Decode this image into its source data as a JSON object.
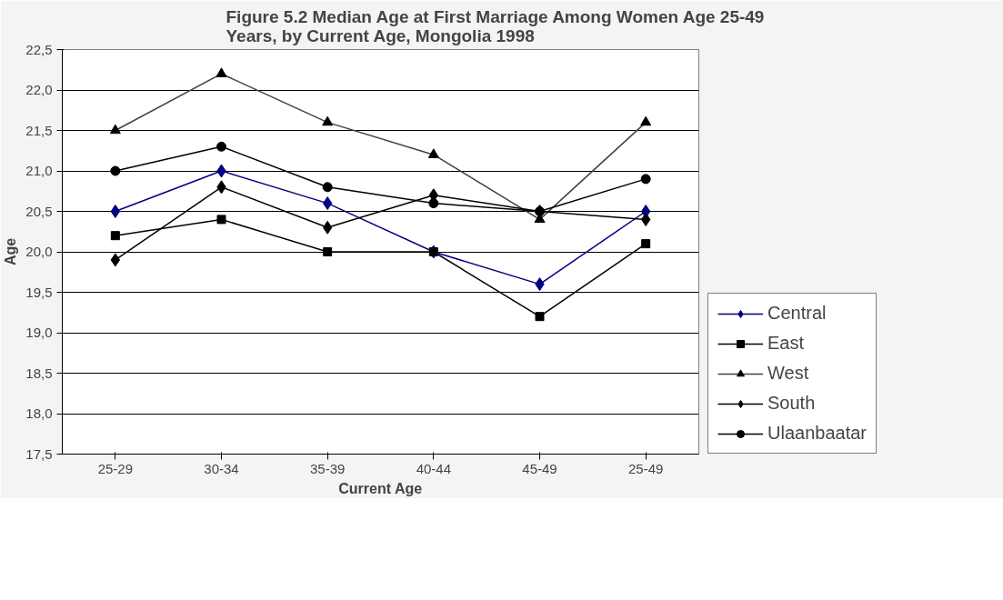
{
  "chart_data": {
    "type": "line",
    "title": "Figure 5.2 Median Age at First Marriage Among Women Age 25-49 Years, by Current Age, Mongolia 1998",
    "xlabel": "Current Age",
    "ylabel": "Age",
    "categories": [
      "25-29",
      "30-34",
      "35-39",
      "40-44",
      "45-49",
      "25-49"
    ],
    "series": [
      {
        "name": "Central",
        "color": "#000080",
        "marker": "diamond",
        "values": [
          20.5,
          21.0,
          20.6,
          20.0,
          19.6,
          20.5
        ]
      },
      {
        "name": "East",
        "color": "#000000",
        "marker": "square",
        "values": [
          20.2,
          20.4,
          20.0,
          20.0,
          19.2,
          20.1
        ]
      },
      {
        "name": "West",
        "color": "#404040",
        "marker": "triangle",
        "values": [
          21.5,
          22.2,
          21.6,
          21.2,
          20.4,
          21.6
        ]
      },
      {
        "name": "South",
        "color": "#000000",
        "marker": "diamond",
        "values": [
          19.9,
          20.8,
          20.3,
          20.7,
          20.5,
          20.4
        ]
      },
      {
        "name": "Ulaanbaatar",
        "color": "#000000",
        "marker": "circle",
        "values": [
          21.0,
          21.3,
          20.8,
          20.6,
          20.5,
          20.9
        ]
      }
    ],
    "ylim": [
      17.5,
      22.5
    ],
    "yticks": [
      {
        "value": 17.5,
        "label": "17,5"
      },
      {
        "value": 18.0,
        "label": "18,0"
      },
      {
        "value": 18.5,
        "label": "18,5"
      },
      {
        "value": 19.0,
        "label": "19,0"
      },
      {
        "value": 19.5,
        "label": "19,5"
      },
      {
        "value": 20.0,
        "label": "20,0"
      },
      {
        "value": 20.5,
        "label": "20,5"
      },
      {
        "value": 21.0,
        "label": "21,0"
      },
      {
        "value": 21.5,
        "label": "21,5"
      },
      {
        "value": 22.0,
        "label": "22,0"
      },
      {
        "value": 22.5,
        "label": "22,5"
      }
    ],
    "grid": "y",
    "legend": "right",
    "line_style": "solid"
  }
}
